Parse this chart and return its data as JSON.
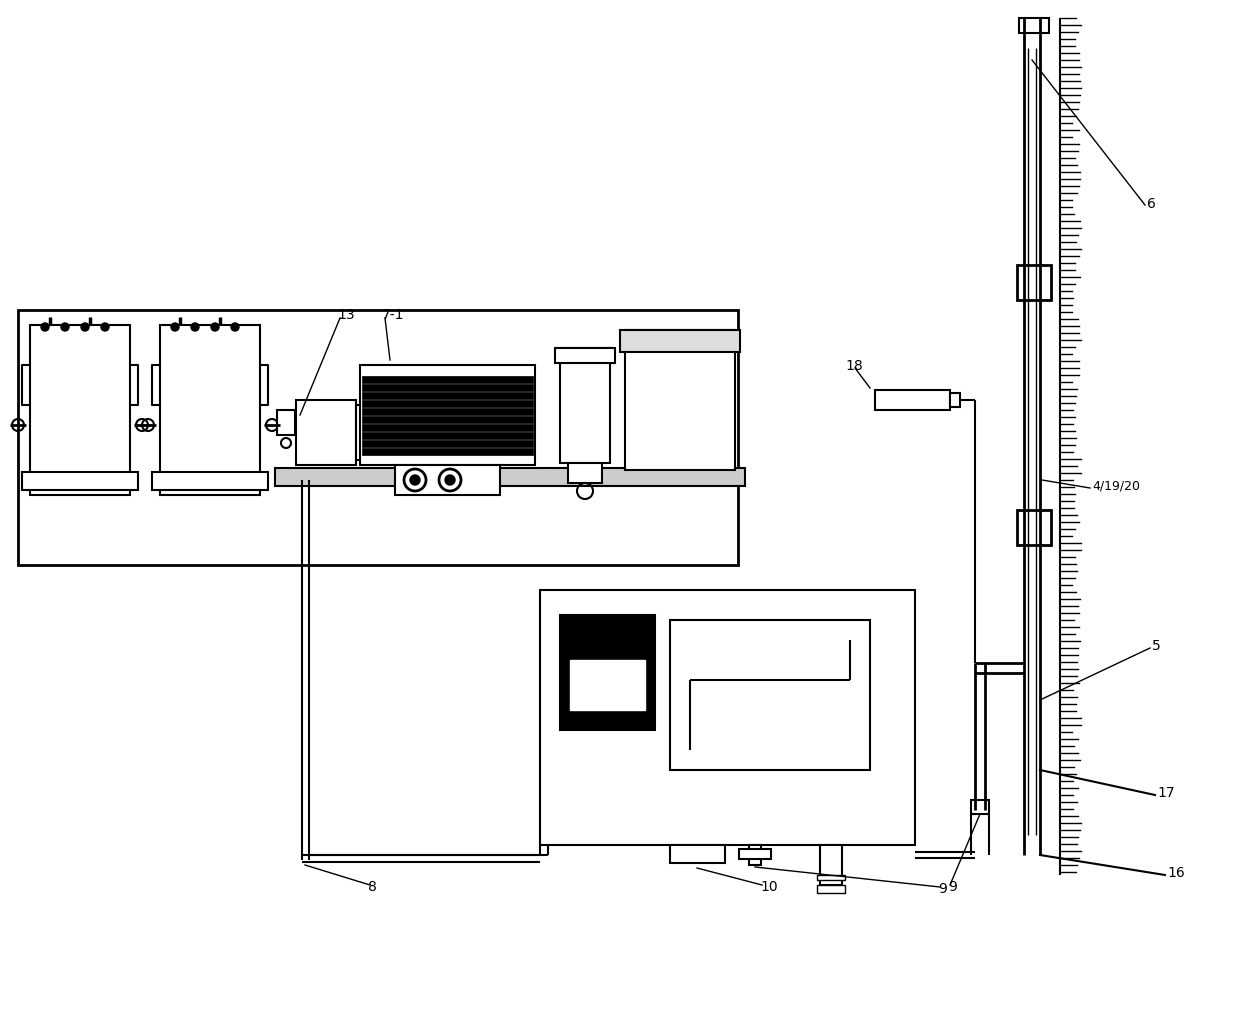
{
  "bg_color": "#ffffff",
  "line_color": "#000000",
  "fig_width": 12.4,
  "fig_height": 10.15
}
